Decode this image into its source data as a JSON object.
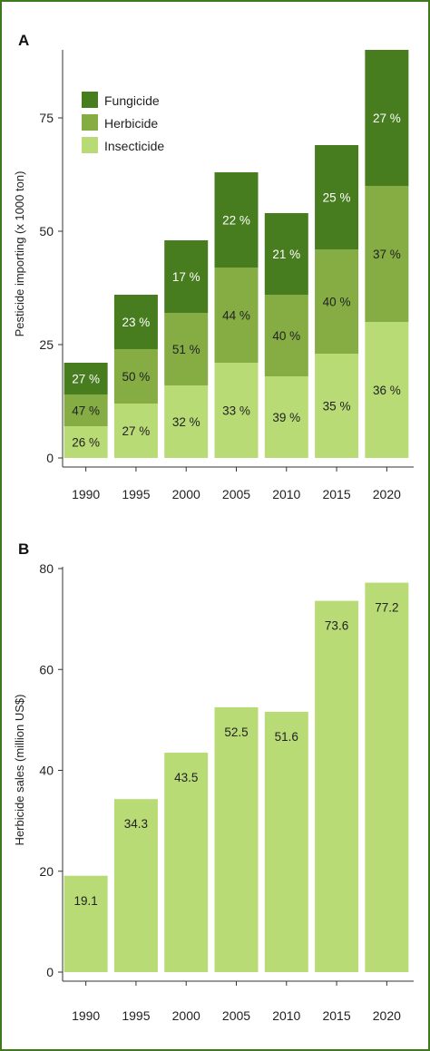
{
  "colors": {
    "fungicide": "#477d1f",
    "herbicide": "#85ad44",
    "insecticide": "#b9db76",
    "sales": "#b9db76",
    "axis": "#333333",
    "frame": "#3d7a1c"
  },
  "chart_data": [
    {
      "panel": "A",
      "type": "bar",
      "stacked": true,
      "ylabel": "Pesticide importing (x 1000 ton)",
      "ylim": [
        0,
        90
      ],
      "yticks": [
        0,
        25,
        50,
        75
      ],
      "categories": [
        "1990",
        "1995",
        "2000",
        "2005",
        "2010",
        "2015",
        "2020"
      ],
      "legend_position": "top-left",
      "series": [
        {
          "name": "Insecticide",
          "values": [
            7,
            12,
            16,
            21,
            18,
            23,
            30
          ],
          "labels": [
            "26 %",
            "27 %",
            "32 %",
            "33 %",
            "39 %",
            "35 %",
            "36 %"
          ]
        },
        {
          "name": "Herbicide",
          "values": [
            7,
            12,
            16,
            21,
            18,
            23,
            30
          ],
          "labels": [
            "47 %",
            "50 %",
            "51 %",
            "44 %",
            "40 %",
            "40 %",
            "37 %"
          ]
        },
        {
          "name": "Fungicide",
          "values": [
            7,
            12,
            16,
            21,
            18,
            23,
            30
          ],
          "labels": [
            "27 %",
            "23 %",
            "17 %",
            "22 %",
            "21 %",
            "25 %",
            "27 %"
          ]
        }
      ],
      "legend": [
        "Fungicide",
        "Herbicide",
        "Insecticide"
      ]
    },
    {
      "panel": "B",
      "type": "bar",
      "ylabel": "Herbicide sales (million US$)",
      "ylim": [
        0,
        80
      ],
      "yticks": [
        0,
        20,
        40,
        60,
        80
      ],
      "categories": [
        "1990",
        "1995",
        "2000",
        "2005",
        "2010",
        "2015",
        "2020"
      ],
      "values": [
        19.1,
        34.3,
        43.5,
        52.5,
        51.6,
        73.6,
        77.2
      ],
      "labels": [
        "19.1",
        "34.3",
        "43.5",
        "52.5",
        "51.6",
        "73.6",
        "77.2"
      ]
    }
  ]
}
